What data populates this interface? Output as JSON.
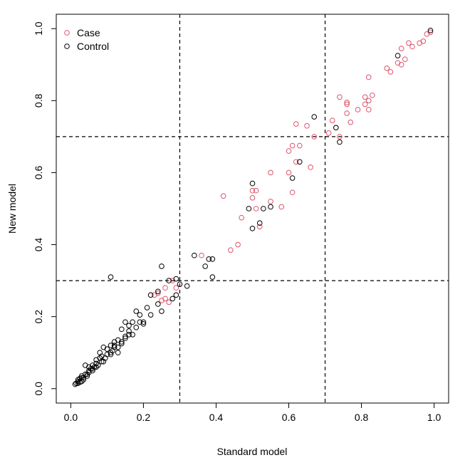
{
  "chart_data": {
    "type": "scatter",
    "title": "",
    "xlabel": "Standard model",
    "ylabel": "New model",
    "xlim": [
      -0.04,
      1.04
    ],
    "ylim": [
      -0.04,
      1.04
    ],
    "x_ticks": [
      0.0,
      0.2,
      0.4,
      0.6,
      0.8,
      1.0
    ],
    "y_ticks": [
      0.0,
      0.2,
      0.4,
      0.6,
      0.8,
      1.0
    ],
    "x_tick_labels": [
      "0.0",
      "0.2",
      "0.4",
      "0.6",
      "0.8",
      "1.0"
    ],
    "y_tick_labels": [
      "0.0",
      "0.2",
      "0.4",
      "0.6",
      "0.8",
      "1.0"
    ],
    "reference_lines": {
      "vertical": [
        0.3,
        0.7
      ],
      "horizontal": [
        0.3,
        0.7
      ],
      "style": "dashed",
      "color": "#000000"
    },
    "legend": {
      "position": "top-left",
      "entries": [
        {
          "label": "Case",
          "color": "#DF536B"
        },
        {
          "label": "Control",
          "color": "#000000"
        }
      ]
    },
    "series": [
      {
        "name": "Case",
        "color": "#DF536B",
        "marker": "open-circle",
        "points": [
          [
            0.98,
            0.985
          ],
          [
            0.99,
            0.99
          ],
          [
            0.97,
            0.965
          ],
          [
            0.96,
            0.96
          ],
          [
            0.94,
            0.95
          ],
          [
            0.93,
            0.96
          ],
          [
            0.91,
            0.945
          ],
          [
            0.92,
            0.915
          ],
          [
            0.9,
            0.905
          ],
          [
            0.91,
            0.9
          ],
          [
            0.88,
            0.88
          ],
          [
            0.87,
            0.89
          ],
          [
            0.82,
            0.865
          ],
          [
            0.83,
            0.815
          ],
          [
            0.82,
            0.8
          ],
          [
            0.81,
            0.81
          ],
          [
            0.81,
            0.79
          ],
          [
            0.82,
            0.775
          ],
          [
            0.74,
            0.81
          ],
          [
            0.76,
            0.795
          ],
          [
            0.76,
            0.79
          ],
          [
            0.79,
            0.775
          ],
          [
            0.77,
            0.74
          ],
          [
            0.76,
            0.765
          ],
          [
            0.72,
            0.745
          ],
          [
            0.73,
            0.725
          ],
          [
            0.71,
            0.71
          ],
          [
            0.74,
            0.7
          ],
          [
            0.62,
            0.735
          ],
          [
            0.65,
            0.73
          ],
          [
            0.67,
            0.7
          ],
          [
            0.6,
            0.66
          ],
          [
            0.61,
            0.675
          ],
          [
            0.63,
            0.675
          ],
          [
            0.62,
            0.63
          ],
          [
            0.66,
            0.615
          ],
          [
            0.6,
            0.6
          ],
          [
            0.61,
            0.545
          ],
          [
            0.55,
            0.6
          ],
          [
            0.5,
            0.55
          ],
          [
            0.51,
            0.55
          ],
          [
            0.5,
            0.53
          ],
          [
            0.55,
            0.52
          ],
          [
            0.58,
            0.505
          ],
          [
            0.51,
            0.5
          ],
          [
            0.42,
            0.535
          ],
          [
            0.47,
            0.475
          ],
          [
            0.52,
            0.45
          ],
          [
            0.46,
            0.4
          ],
          [
            0.44,
            0.385
          ],
          [
            0.36,
            0.37
          ],
          [
            0.28,
            0.3
          ],
          [
            0.26,
            0.28
          ],
          [
            0.29,
            0.28
          ],
          [
            0.26,
            0.25
          ],
          [
            0.27,
            0.24
          ],
          [
            0.23,
            0.26
          ],
          [
            0.25,
            0.245
          ],
          [
            0.24,
            0.265
          ]
        ]
      },
      {
        "name": "Control",
        "color": "#000000",
        "marker": "open-circle",
        "points": [
          [
            0.99,
            0.995
          ],
          [
            0.9,
            0.925
          ],
          [
            0.67,
            0.755
          ],
          [
            0.73,
            0.725
          ],
          [
            0.74,
            0.685
          ],
          [
            0.63,
            0.63
          ],
          [
            0.61,
            0.585
          ],
          [
            0.5,
            0.57
          ],
          [
            0.49,
            0.5
          ],
          [
            0.53,
            0.5
          ],
          [
            0.55,
            0.505
          ],
          [
            0.52,
            0.46
          ],
          [
            0.5,
            0.445
          ],
          [
            0.34,
            0.37
          ],
          [
            0.38,
            0.36
          ],
          [
            0.39,
            0.36
          ],
          [
            0.37,
            0.34
          ],
          [
            0.25,
            0.34
          ],
          [
            0.39,
            0.31
          ],
          [
            0.11,
            0.31
          ],
          [
            0.27,
            0.3
          ],
          [
            0.29,
            0.305
          ],
          [
            0.3,
            0.29
          ],
          [
            0.32,
            0.285
          ],
          [
            0.22,
            0.26
          ],
          [
            0.24,
            0.27
          ],
          [
            0.29,
            0.26
          ],
          [
            0.28,
            0.25
          ],
          [
            0.24,
            0.235
          ],
          [
            0.25,
            0.215
          ],
          [
            0.21,
            0.225
          ],
          [
            0.22,
            0.205
          ],
          [
            0.19,
            0.205
          ],
          [
            0.18,
            0.215
          ],
          [
            0.19,
            0.185
          ],
          [
            0.2,
            0.18
          ],
          [
            0.17,
            0.185
          ],
          [
            0.16,
            0.175
          ],
          [
            0.15,
            0.185
          ],
          [
            0.16,
            0.16
          ],
          [
            0.14,
            0.165
          ],
          [
            0.15,
            0.145
          ],
          [
            0.13,
            0.135
          ],
          [
            0.14,
            0.125
          ],
          [
            0.12,
            0.13
          ],
          [
            0.12,
            0.115
          ],
          [
            0.11,
            0.12
          ],
          [
            0.1,
            0.11
          ],
          [
            0.09,
            0.115
          ],
          [
            0.1,
            0.095
          ],
          [
            0.08,
            0.1
          ],
          [
            0.08,
            0.085
          ],
          [
            0.07,
            0.08
          ],
          [
            0.09,
            0.075
          ],
          [
            0.07,
            0.07
          ],
          [
            0.06,
            0.065
          ],
          [
            0.05,
            0.06
          ],
          [
            0.06,
            0.05
          ],
          [
            0.05,
            0.045
          ],
          [
            0.04,
            0.065
          ],
          [
            0.04,
            0.04
          ],
          [
            0.03,
            0.035
          ],
          [
            0.03,
            0.03
          ],
          [
            0.02,
            0.025
          ],
          [
            0.02,
            0.02
          ],
          [
            0.015,
            0.015
          ],
          [
            0.035,
            0.03
          ],
          [
            0.025,
            0.028
          ],
          [
            0.045,
            0.04
          ],
          [
            0.055,
            0.055
          ],
          [
            0.065,
            0.06
          ],
          [
            0.085,
            0.09
          ],
          [
            0.095,
            0.085
          ],
          [
            0.11,
            0.1
          ],
          [
            0.13,
            0.1
          ],
          [
            0.15,
            0.14
          ],
          [
            0.17,
            0.15
          ],
          [
            0.13,
            0.115
          ],
          [
            0.115,
            0.105
          ],
          [
            0.085,
            0.075
          ],
          [
            0.075,
            0.065
          ],
          [
            0.035,
            0.025
          ],
          [
            0.025,
            0.018
          ],
          [
            0.045,
            0.035
          ],
          [
            0.12,
            0.12
          ],
          [
            0.16,
            0.15
          ],
          [
            0.18,
            0.17
          ],
          [
            0.2,
            0.185
          ],
          [
            0.14,
            0.13
          ],
          [
            0.11,
            0.095
          ],
          [
            0.07,
            0.06
          ],
          [
            0.06,
            0.055
          ],
          [
            0.05,
            0.05
          ],
          [
            0.03,
            0.02
          ],
          [
            0.02,
            0.015
          ],
          [
            0.012,
            0.012
          ]
        ]
      }
    ]
  }
}
